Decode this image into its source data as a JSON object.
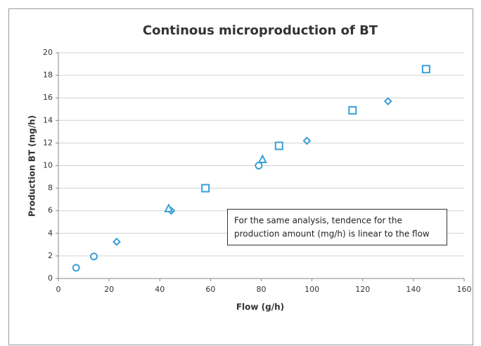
{
  "chart_data": {
    "type": "scatter",
    "title": "Continous microproduction of BT",
    "x_label": "Flow (g/h)",
    "y_label": "Production BT (mg/h)",
    "annotation": [
      "For the same analysis, tendence for the",
      "production amount (mg/h) is linear to the flow"
    ],
    "xlim": [
      0,
      160
    ],
    "xticks": [
      0,
      20,
      40,
      60,
      80,
      100,
      120,
      140,
      160
    ],
    "ylim": [
      0,
      20
    ],
    "yticks": [
      0,
      2,
      4,
      6,
      8,
      10,
      12,
      14,
      16,
      18,
      20
    ],
    "grid": true,
    "series": [
      {
        "marker": "circle",
        "color": "#3a9fd8",
        "x": [
          7,
          14,
          79
        ],
        "values": [
          0.95,
          1.95,
          10.0
        ]
      },
      {
        "marker": "diamond",
        "color": "#3a9fd8",
        "x": [
          23,
          44.5,
          98,
          130
        ],
        "values": [
          3.25,
          6.0,
          12.2,
          15.7
        ]
      },
      {
        "marker": "triangle",
        "color": "#3a9fd8",
        "x": [
          43.5,
          80.5
        ],
        "values": [
          6.15,
          10.5
        ]
      },
      {
        "marker": "square",
        "color": "#3a9fd8",
        "x": [
          58,
          87,
          116,
          145
        ],
        "values": [
          8.0,
          11.75,
          14.9,
          18.55
        ]
      }
    ]
  }
}
